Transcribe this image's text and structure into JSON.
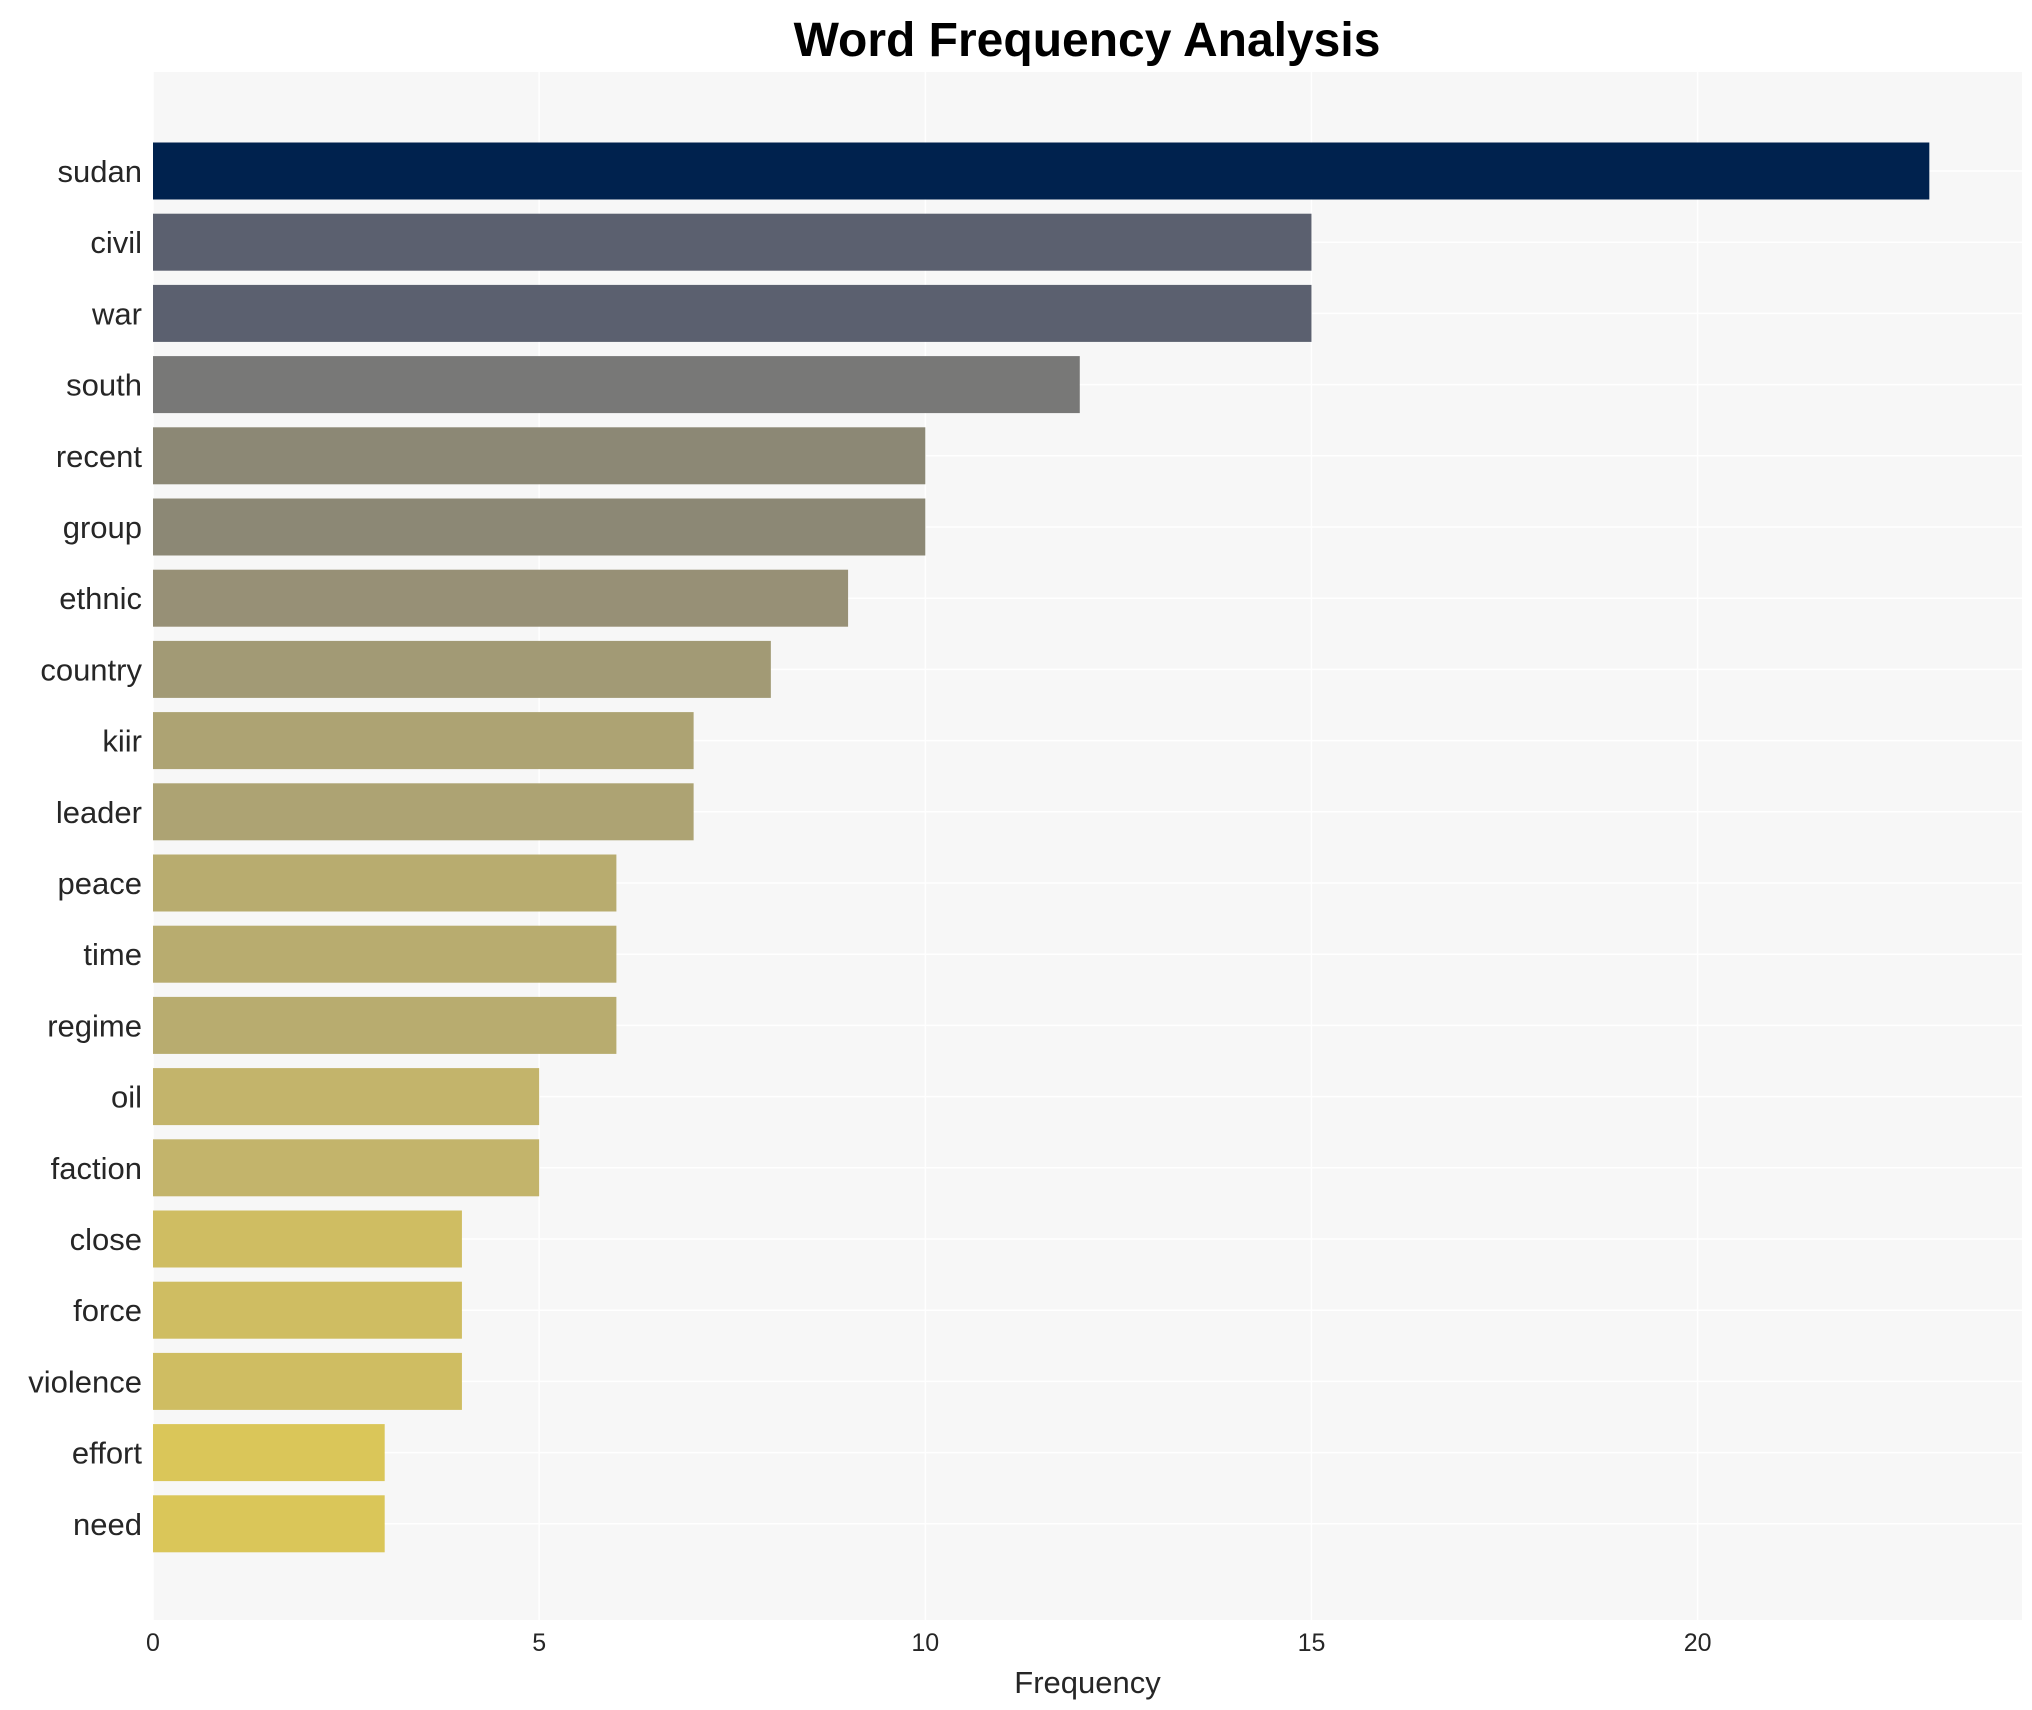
{
  "chart_data": {
    "type": "bar",
    "orientation": "horizontal",
    "title": "Word Frequency Analysis",
    "xlabel": "Frequency",
    "ylabel": "",
    "xlim": [
      0,
      24.2
    ],
    "xticks": [
      0,
      5,
      10,
      15,
      20
    ],
    "grid": true,
    "categories": [
      "sudan",
      "civil",
      "war",
      "south",
      "recent",
      "group",
      "ethnic",
      "country",
      "kiir",
      "leader",
      "peace",
      "time",
      "regime",
      "oil",
      "faction",
      "close",
      "force",
      "violence",
      "effort",
      "need"
    ],
    "values": [
      23,
      15,
      15,
      12,
      10,
      10,
      9,
      8,
      7,
      7,
      6,
      6,
      6,
      5,
      5,
      4,
      4,
      4,
      3,
      3
    ],
    "colors": [
      "#00224e",
      "#5b606f",
      "#5b606f",
      "#787877",
      "#8c8875",
      "#8c8875",
      "#979076",
      "#a29a75",
      "#ada373",
      "#ada373",
      "#b8ac6f",
      "#b8ac6f",
      "#b8ac6f",
      "#c3b46b",
      "#c3b46b",
      "#cfbd62",
      "#cfbd62",
      "#cfbd62",
      "#dac659",
      "#dac659"
    ],
    "plot_background": "#f7f7f7"
  }
}
